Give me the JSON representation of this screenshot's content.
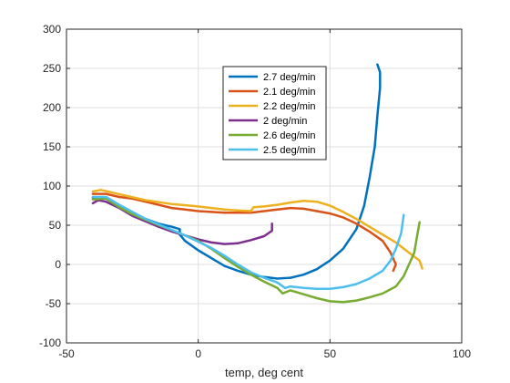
{
  "chart_data": {
    "type": "line",
    "title": "",
    "xlabel": "temp, deg cent",
    "ylabel": "",
    "xlim": [
      -50,
      100
    ],
    "ylim": [
      -100,
      300
    ],
    "xticks": [
      -50,
      0,
      50,
      100
    ],
    "yticks": [
      -100,
      -50,
      0,
      50,
      100,
      150,
      200,
      250,
      300
    ],
    "grid": true,
    "legend_position": "top-center",
    "series": [
      {
        "name": "2.7 deg/min",
        "color": "#0072BD",
        "points": [
          [
            -40,
            85
          ],
          [
            -35,
            84
          ],
          [
            -30,
            75
          ],
          [
            -25,
            66
          ],
          [
            -20,
            58
          ],
          [
            -15,
            52
          ],
          [
            -10,
            48
          ],
          [
            -7,
            45
          ],
          [
            -7,
            38
          ],
          [
            -5,
            30
          ],
          [
            0,
            18
          ],
          [
            5,
            8
          ],
          [
            10,
            -2
          ],
          [
            15,
            -8
          ],
          [
            20,
            -13
          ],
          [
            25,
            -16
          ],
          [
            30,
            -18
          ],
          [
            35,
            -17
          ],
          [
            40,
            -13
          ],
          [
            45,
            -6
          ],
          [
            50,
            5
          ],
          [
            55,
            20
          ],
          [
            60,
            45
          ],
          [
            63,
            75
          ],
          [
            65,
            110
          ],
          [
            67,
            150
          ],
          [
            68,
            190
          ],
          [
            69,
            225
          ],
          [
            69,
            245
          ],
          [
            68,
            255
          ]
        ]
      },
      {
        "name": "2.1 deg/min",
        "color": "#D95319",
        "points": [
          [
            -40,
            90
          ],
          [
            -35,
            90
          ],
          [
            -30,
            86
          ],
          [
            -25,
            84
          ],
          [
            -20,
            80
          ],
          [
            -15,
            76
          ],
          [
            -10,
            72
          ],
          [
            -5,
            70
          ],
          [
            0,
            68
          ],
          [
            5,
            67
          ],
          [
            10,
            66
          ],
          [
            15,
            66
          ],
          [
            20,
            66
          ],
          [
            25,
            68
          ],
          [
            30,
            70
          ],
          [
            35,
            72
          ],
          [
            40,
            71
          ],
          [
            45,
            68
          ],
          [
            50,
            65
          ],
          [
            55,
            60
          ],
          [
            60,
            52
          ],
          [
            65,
            42
          ],
          [
            70,
            30
          ],
          [
            73,
            15
          ],
          [
            75,
            0
          ],
          [
            74,
            -8
          ]
        ]
      },
      {
        "name": "2.2 deg/min",
        "color": "#EDB120",
        "points": [
          [
            -40,
            93
          ],
          [
            -37,
            95
          ],
          [
            -33,
            92
          ],
          [
            -28,
            88
          ],
          [
            -20,
            82
          ],
          [
            -10,
            77
          ],
          [
            0,
            74
          ],
          [
            5,
            72
          ],
          [
            10,
            70
          ],
          [
            15,
            69
          ],
          [
            20,
            68
          ],
          [
            21,
            73
          ],
          [
            25,
            74
          ],
          [
            30,
            76
          ],
          [
            35,
            79
          ],
          [
            40,
            81
          ],
          [
            45,
            80
          ],
          [
            50,
            75
          ],
          [
            55,
            67
          ],
          [
            60,
            58
          ],
          [
            65,
            48
          ],
          [
            70,
            38
          ],
          [
            75,
            28
          ],
          [
            80,
            15
          ],
          [
            84,
            5
          ],
          [
            85,
            -5
          ]
        ]
      },
      {
        "name": "2 deg/min",
        "color": "#7E2F8E",
        "points": [
          [
            -40,
            78
          ],
          [
            -38,
            82
          ],
          [
            -35,
            80
          ],
          [
            -30,
            72
          ],
          [
            -25,
            62
          ],
          [
            -20,
            55
          ],
          [
            -15,
            48
          ],
          [
            -10,
            42
          ],
          [
            -5,
            37
          ],
          [
            0,
            32
          ],
          [
            5,
            28
          ],
          [
            10,
            26
          ],
          [
            15,
            27
          ],
          [
            20,
            31
          ],
          [
            25,
            36
          ],
          [
            28,
            43
          ],
          [
            28,
            52
          ]
        ]
      },
      {
        "name": "2.6 deg/min",
        "color": "#77AC30",
        "points": [
          [
            -40,
            83
          ],
          [
            -35,
            84
          ],
          [
            -30,
            73
          ],
          [
            -25,
            64
          ],
          [
            -20,
            57
          ],
          [
            -15,
            50
          ],
          [
            -10,
            44
          ],
          [
            -5,
            37
          ],
          [
            0,
            30
          ],
          [
            5,
            20
          ],
          [
            10,
            8
          ],
          [
            15,
            -3
          ],
          [
            20,
            -13
          ],
          [
            25,
            -22
          ],
          [
            30,
            -30
          ],
          [
            32,
            -37
          ],
          [
            35,
            -33
          ],
          [
            40,
            -38
          ],
          [
            45,
            -43
          ],
          [
            50,
            -47
          ],
          [
            55,
            -48
          ],
          [
            60,
            -46
          ],
          [
            65,
            -42
          ],
          [
            70,
            -37
          ],
          [
            75,
            -28
          ],
          [
            78,
            -15
          ],
          [
            80,
            0
          ],
          [
            82,
            15
          ],
          [
            83,
            35
          ],
          [
            84,
            54
          ]
        ]
      },
      {
        "name": "2.5 deg/min",
        "color": "#4DBEEE",
        "points": [
          [
            -40,
            86
          ],
          [
            -35,
            86
          ],
          [
            -30,
            76
          ],
          [
            -25,
            67
          ],
          [
            -20,
            58
          ],
          [
            -15,
            51
          ],
          [
            -10,
            44
          ],
          [
            -5,
            37
          ],
          [
            0,
            29
          ],
          [
            5,
            21
          ],
          [
            10,
            11
          ],
          [
            15,
            0
          ],
          [
            20,
            -10
          ],
          [
            25,
            -17
          ],
          [
            30,
            -23
          ],
          [
            33,
            -30
          ],
          [
            35,
            -28
          ],
          [
            40,
            -30
          ],
          [
            45,
            -31
          ],
          [
            50,
            -31
          ],
          [
            55,
            -29
          ],
          [
            60,
            -25
          ],
          [
            65,
            -18
          ],
          [
            70,
            -8
          ],
          [
            73,
            5
          ],
          [
            75,
            20
          ],
          [
            77,
            40
          ],
          [
            78,
            63
          ]
        ]
      }
    ]
  }
}
